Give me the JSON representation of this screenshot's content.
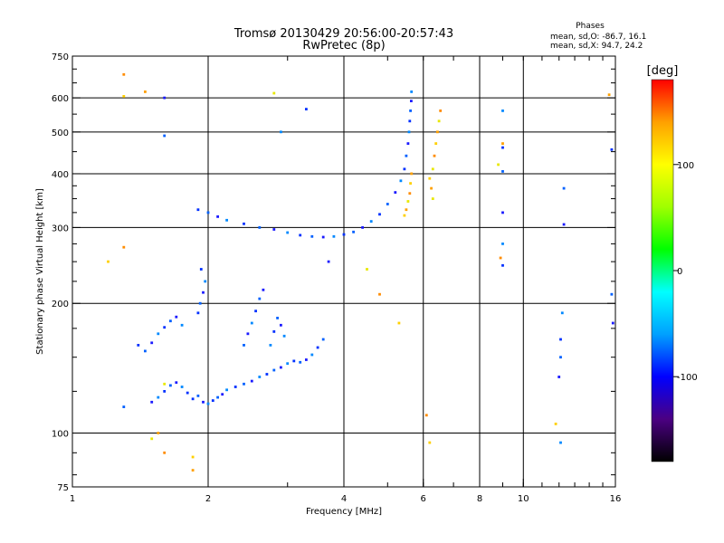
{
  "chart_data": {
    "type": "scatter",
    "title": "Tromsø 20130429 20:56:00-20:57:43",
    "subtitle": "RwPretec (8p)",
    "xlabel": "Frequency [MHz]",
    "ylabel": "Stationary phase Virtual Height [km]",
    "x_scale": "log",
    "y_scale": "log",
    "xlim": [
      1,
      16
    ],
    "ylim": [
      75,
      750
    ],
    "grid": true,
    "x_ticks": [
      1,
      2,
      4,
      6,
      8,
      10,
      16
    ],
    "x_tick_labels": [
      "1",
      "2",
      "4",
      "6",
      "8",
      "10",
      "16"
    ],
    "x_grid": [
      2,
      4,
      6,
      8,
      10
    ],
    "y_ticks": [
      75,
      100,
      200,
      300,
      400,
      500,
      600,
      750
    ],
    "y_tick_labels": [
      "75",
      "100",
      "200",
      "300",
      "400",
      "500",
      "600",
      "750"
    ],
    "y_grid": [
      100,
      200,
      300,
      400,
      500,
      600
    ],
    "phase_info": {
      "title": "Phases",
      "line1": "mean, sd,O: -86.7, 16.1",
      "line2": "mean, sd,X:  94.7, 24.2"
    },
    "colorbar": {
      "label": "[deg]",
      "range": [
        -180,
        180
      ],
      "ticks": [
        -100,
        0,
        100
      ],
      "tick_labels": [
        "-100",
        "0",
        "100"
      ],
      "colors": [
        "#000000",
        "#4b0082",
        "#0000ff",
        "#00a0ff",
        "#00ffff",
        "#00ff00",
        "#a0ff00",
        "#ffff00",
        "#ffa000",
        "#ff0000"
      ]
    },
    "series": [
      {
        "name": "O",
        "points": [
          [
            1.85,
            120
          ],
          [
            1.9,
            122
          ],
          [
            1.95,
            118
          ],
          [
            2.0,
            117
          ],
          [
            2.05,
            119
          ],
          [
            2.1,
            121
          ],
          [
            2.15,
            123
          ],
          [
            2.2,
            126
          ],
          [
            2.3,
            128
          ],
          [
            2.4,
            130
          ],
          [
            2.5,
            132
          ],
          [
            2.6,
            135
          ],
          [
            2.7,
            137
          ],
          [
            2.8,
            140
          ],
          [
            2.9,
            142
          ],
          [
            3.0,
            145
          ],
          [
            3.1,
            147
          ],
          [
            3.2,
            146
          ],
          [
            3.3,
            148
          ],
          [
            3.4,
            152
          ],
          [
            3.5,
            158
          ],
          [
            3.6,
            165
          ],
          [
            1.5,
            118
          ],
          [
            1.55,
            121
          ],
          [
            1.6,
            125
          ],
          [
            1.65,
            129
          ],
          [
            1.7,
            131
          ],
          [
            1.75,
            128
          ],
          [
            1.8,
            124
          ],
          [
            1.45,
            155
          ],
          [
            1.5,
            162
          ],
          [
            1.55,
            170
          ],
          [
            1.6,
            176
          ],
          [
            1.65,
            182
          ],
          [
            1.7,
            186
          ],
          [
            1.75,
            178
          ],
          [
            1.9,
            190
          ],
          [
            1.92,
            200
          ],
          [
            1.95,
            212
          ],
          [
            1.97,
            225
          ],
          [
            1.93,
            240
          ],
          [
            2.4,
            160
          ],
          [
            2.45,
            170
          ],
          [
            2.5,
            180
          ],
          [
            2.55,
            192
          ],
          [
            2.6,
            205
          ],
          [
            2.65,
            215
          ],
          [
            2.75,
            160
          ],
          [
            2.8,
            172
          ],
          [
            2.85,
            185
          ],
          [
            2.9,
            178
          ],
          [
            2.95,
            168
          ],
          [
            1.9,
            330
          ],
          [
            2.0,
            325
          ],
          [
            2.1,
            318
          ],
          [
            2.2,
            312
          ],
          [
            2.4,
            306
          ],
          [
            2.6,
            300
          ],
          [
            2.8,
            297
          ],
          [
            3.0,
            292
          ],
          [
            3.2,
            288
          ],
          [
            3.4,
            286
          ],
          [
            3.6,
            285
          ],
          [
            3.8,
            286
          ],
          [
            4.0,
            289
          ],
          [
            4.2,
            293
          ],
          [
            4.4,
            300
          ],
          [
            4.6,
            310
          ],
          [
            4.8,
            322
          ],
          [
            5.0,
            340
          ],
          [
            5.2,
            362
          ],
          [
            5.35,
            385
          ],
          [
            5.45,
            410
          ],
          [
            5.5,
            440
          ],
          [
            5.55,
            470
          ],
          [
            5.58,
            500
          ],
          [
            5.6,
            530
          ],
          [
            5.62,
            560
          ],
          [
            5.64,
            590
          ],
          [
            5.65,
            620
          ],
          [
            1.4,
            160
          ],
          [
            1.3,
            115
          ],
          [
            3.7,
            250
          ],
          [
            2.9,
            500
          ],
          [
            3.3,
            565
          ],
          [
            1.6,
            490
          ],
          [
            1.6,
            600
          ],
          [
            9.0,
            560
          ],
          [
            9.0,
            460
          ],
          [
            9.0,
            405
          ],
          [
            9.0,
            325
          ],
          [
            9.0,
            275
          ],
          [
            9.0,
            245
          ],
          [
            12.3,
            370
          ],
          [
            12.3,
            305
          ],
          [
            12.2,
            190
          ],
          [
            12.1,
            165
          ],
          [
            12.1,
            150
          ],
          [
            12.0,
            135
          ],
          [
            12.1,
            95
          ],
          [
            15.7,
            455
          ],
          [
            15.7,
            210
          ],
          [
            15.8,
            180
          ]
        ]
      },
      {
        "name": "X",
        "points": [
          [
            5.45,
            320
          ],
          [
            5.5,
            330
          ],
          [
            5.55,
            345
          ],
          [
            5.6,
            360
          ],
          [
            5.62,
            380
          ],
          [
            5.65,
            400
          ],
          [
            6.3,
            410
          ],
          [
            6.35,
            440
          ],
          [
            6.4,
            470
          ],
          [
            6.45,
            500
          ],
          [
            6.5,
            530
          ],
          [
            6.55,
            560
          ],
          [
            6.2,
            390
          ],
          [
            6.25,
            370
          ],
          [
            6.3,
            350
          ],
          [
            1.3,
            680
          ],
          [
            1.3,
            605
          ],
          [
            1.45,
            620
          ],
          [
            2.8,
            615
          ],
          [
            1.3,
            270
          ],
          [
            1.2,
            250
          ],
          [
            1.55,
            100
          ],
          [
            1.5,
            97
          ],
          [
            1.6,
            90
          ],
          [
            1.85,
            88
          ],
          [
            1.85,
            82
          ],
          [
            1.6,
            130
          ],
          [
            6.1,
            110
          ],
          [
            6.2,
            95
          ],
          [
            9.0,
            470
          ],
          [
            8.8,
            420
          ],
          [
            8.9,
            255
          ],
          [
            11.8,
            105
          ],
          [
            15.5,
            610
          ],
          [
            4.5,
            240
          ],
          [
            4.8,
            210
          ],
          [
            5.3,
            180
          ]
        ]
      }
    ]
  }
}
